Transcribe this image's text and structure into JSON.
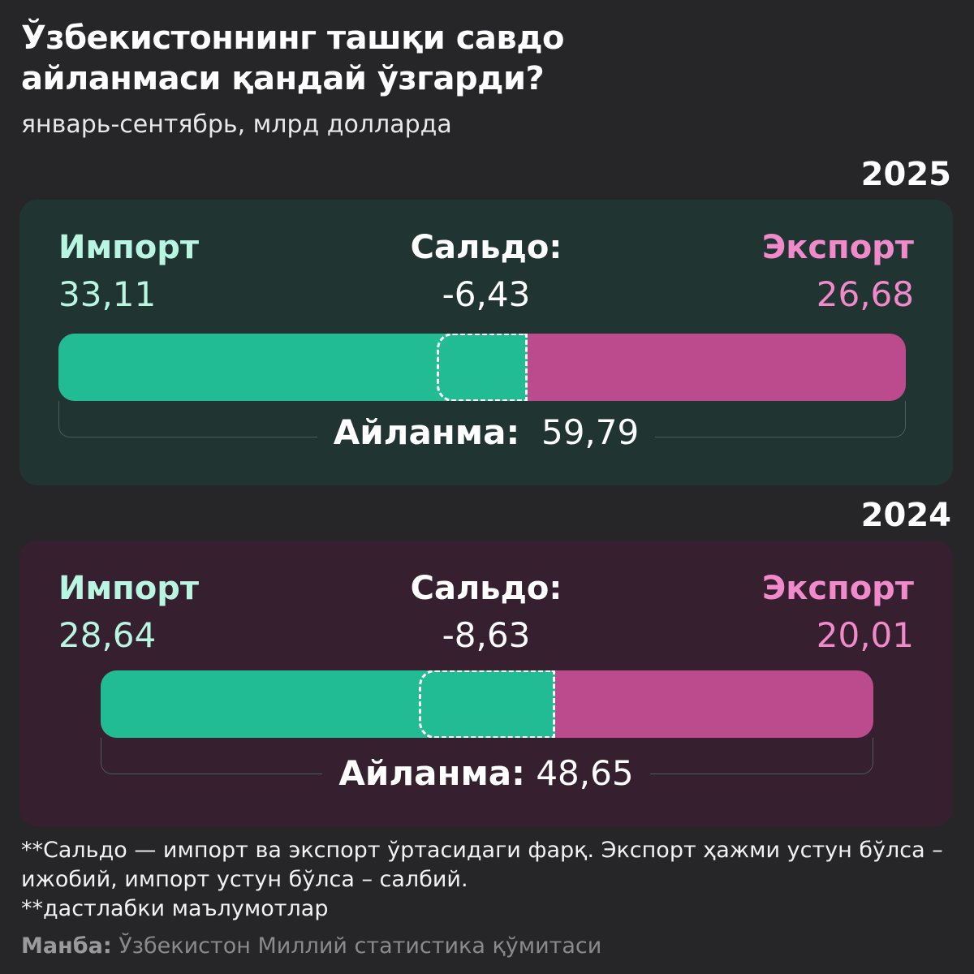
{
  "title": "Ўзбекистоннинг ташқи савдо айланмаси қандай ўзгарди?",
  "subtitle": "январь-сентябрь, млрд долларда",
  "labels": {
    "import": "Импорт",
    "saldo": "Сальдо:",
    "export": "Экспорт",
    "turnover": "Айланма:"
  },
  "colors": {
    "background": "#262628",
    "import": "#21bc94",
    "export": "#bb4b8d",
    "import_text": "#b9f6e2",
    "export_text": "#f08acb",
    "panel_2025": "#203531",
    "panel_2024": "#36202f"
  },
  "chart_data": [
    {
      "type": "bar",
      "title": "2025",
      "import": 33.11,
      "export": 26.68,
      "saldo": -6.43,
      "turnover": 59.79,
      "import_label": "33,11",
      "export_label": "26,68",
      "saldo_label": "-6,43",
      "turnover_label": "59,79"
    },
    {
      "type": "bar",
      "title": "2024",
      "import": 28.64,
      "export": 20.01,
      "saldo": -8.63,
      "turnover": 48.65,
      "import_label": "28,64",
      "export_label": "20,01",
      "saldo_label": "-8,63",
      "turnover_label": "48,65"
    }
  ],
  "notes": [
    "**Сальдо — импорт ва экспорт ўртасидаги фарқ. Экспорт ҳажми устун бўлса – ижобий, импорт устун бўлса – салбий.",
    " **дастлабки маълумотлар"
  ],
  "source": {
    "label": "Манба:",
    "text": "Ўзбекистон Миллий статистика қўмитаси"
  }
}
